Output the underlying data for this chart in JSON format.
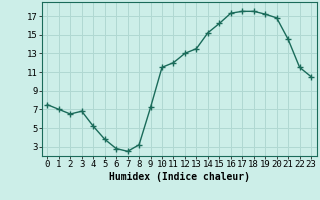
{
  "x": [
    0,
    1,
    2,
    3,
    4,
    5,
    6,
    7,
    8,
    9,
    10,
    11,
    12,
    13,
    14,
    15,
    16,
    17,
    18,
    19,
    20,
    21,
    22,
    23
  ],
  "y": [
    7.5,
    7.0,
    6.5,
    6.8,
    5.2,
    3.8,
    2.8,
    2.5,
    3.2,
    7.2,
    11.5,
    12.0,
    13.0,
    13.5,
    15.2,
    16.2,
    17.3,
    17.5,
    17.5,
    17.2,
    16.8,
    14.5,
    11.5,
    10.5
  ],
  "xlabel": "Humidex (Indice chaleur)",
  "yticks": [
    3,
    5,
    7,
    9,
    11,
    13,
    15,
    17
  ],
  "xticks": [
    0,
    1,
    2,
    3,
    4,
    5,
    6,
    7,
    8,
    9,
    10,
    11,
    12,
    13,
    14,
    15,
    16,
    17,
    18,
    19,
    20,
    21,
    22,
    23
  ],
  "ylim": [
    2.0,
    18.5
  ],
  "xlim": [
    -0.5,
    23.5
  ],
  "line_color": "#1a6b5a",
  "bg_color": "#cceee8",
  "grid_color": "#b0d8d2",
  "marker": "+",
  "marker_size": 4,
  "linewidth": 1.0,
  "xlabel_fontsize": 7,
  "tick_fontsize": 6.5
}
